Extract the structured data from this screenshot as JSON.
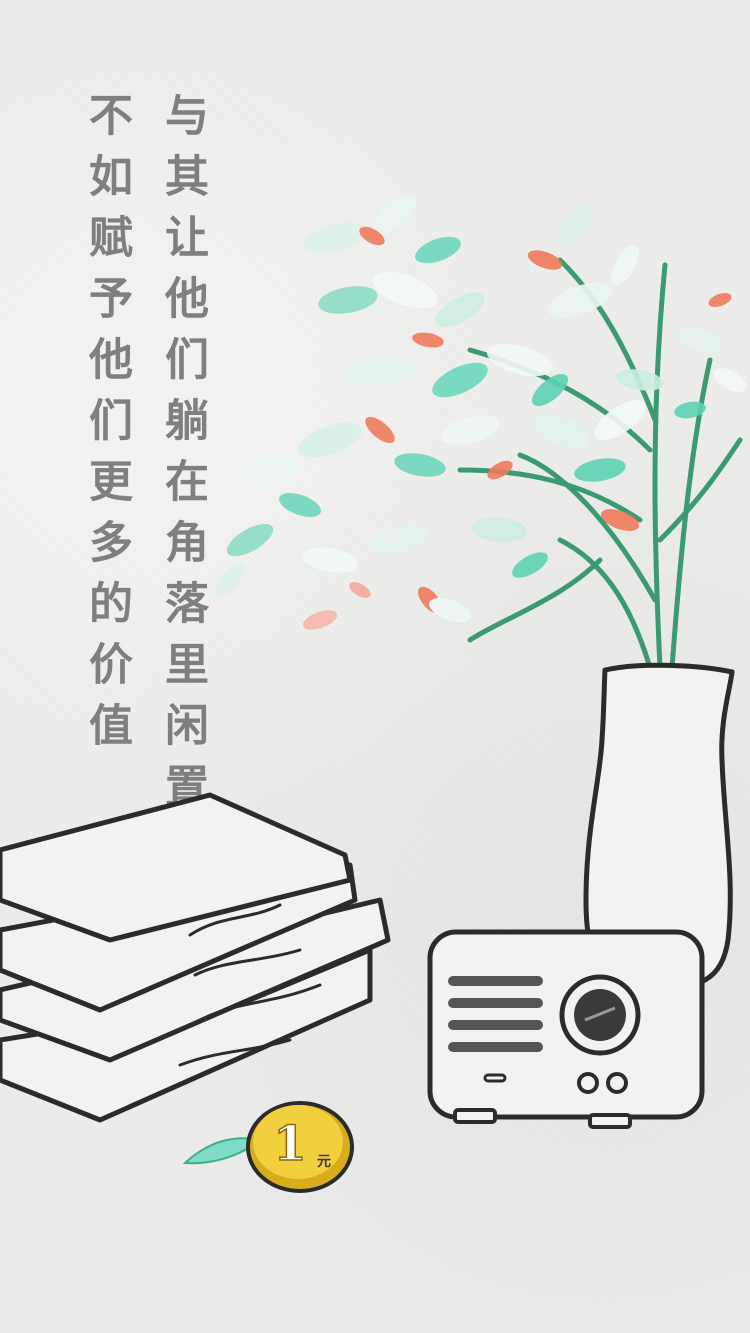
{
  "poem": {
    "line1": "与其让他们躺在角落里闲置",
    "line2": "不如赋予他们更多的价值"
  },
  "coin": {
    "value": "1",
    "unit": "元"
  },
  "colors": {
    "ink": "#2b2b2b",
    "text": "#7f7f7f",
    "leaf_green": "#5fd3b4",
    "leaf_coral": "#f07a5c",
    "stem_green": "#3a9a72",
    "coin_gold": "#f2cf3f"
  }
}
